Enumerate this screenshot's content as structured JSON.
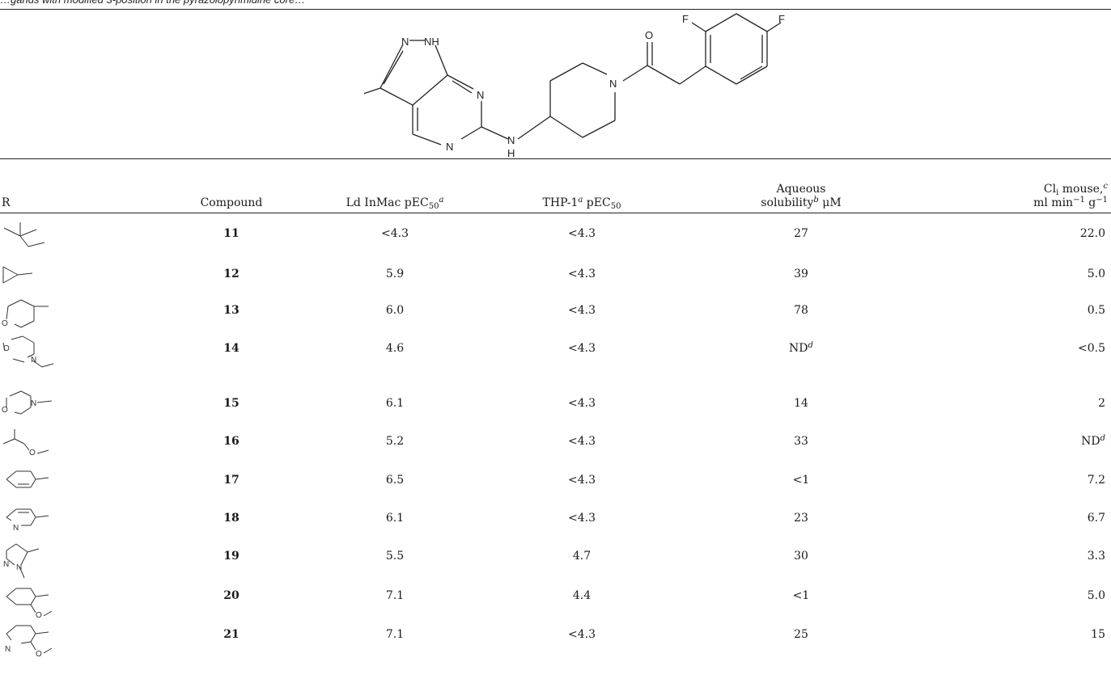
{
  "caption": "…gands with modified 3-position in the pyrazolopyrimidine core…",
  "scaffold": {
    "atoms": {
      "NH": "NH",
      "N": "N",
      "H": "H",
      "O": "O",
      "F": "F",
      "R": "R"
    }
  },
  "table": {
    "headers": {
      "r": "R",
      "compound": "Compound",
      "ld_prefix": "Ld InMac pEC",
      "ld_sub": "50",
      "ld_sup": "a",
      "thp_prefix": "THP-1",
      "thp_sup": "a",
      "thp_mid": " pEC",
      "thp_sub": "50",
      "sol_line1": "Aqueous",
      "sol_prefix": "solubility",
      "sol_sup": "b",
      "sol_unit": " μM",
      "cl_prefix": "Cl",
      "cl_sub": "i",
      "cl_mid": " mouse,",
      "cl_sup": "c",
      "cl_line2_a": "ml min",
      "cl_line2_sup1": "−1",
      "cl_line2_b": " g",
      "cl_line2_sup2": "−1"
    },
    "rows": [
      {
        "substituent": "neopentyl",
        "atom1": "",
        "atom2": "",
        "compound": "11",
        "ld": "<4.3",
        "thp": "<4.3",
        "sol": "27",
        "sol_sup": "",
        "cl": "22.0",
        "cl_sup": ""
      },
      {
        "substituent": "cyclopropyl",
        "atom1": "",
        "atom2": "",
        "compound": "12",
        "ld": "5.9",
        "thp": "<4.3",
        "sol": "39",
        "sol_sup": "",
        "cl": "5.0",
        "cl_sup": ""
      },
      {
        "substituent": "tetrahydropyranyl",
        "atom1": "O",
        "atom2": "",
        "compound": "13",
        "ld": "6.0",
        "thp": "<4.3",
        "sol": "78",
        "sol_sup": "",
        "cl": "0.5",
        "cl_sup": ""
      },
      {
        "substituent": "morpholinomethyl",
        "atom1": "O",
        "atom2": "N",
        "compound": "14",
        "ld": "4.6",
        "thp": "<4.3",
        "sol": "ND",
        "sol_sup": "d",
        "cl": "<0.5",
        "cl_sup": ""
      },
      {
        "substituent": "morpholino",
        "atom1": "O",
        "atom2": "N",
        "compound": "15",
        "ld": "6.1",
        "thp": "<4.3",
        "sol": "14",
        "sol_sup": "",
        "cl": "2",
        "cl_sup": ""
      },
      {
        "substituent": "isopropoxy",
        "atom1": "O",
        "atom2": "",
        "compound": "16",
        "ld": "5.2",
        "thp": "<4.3",
        "sol": "33",
        "sol_sup": "",
        "cl": "ND",
        "cl_sup": "d"
      },
      {
        "substituent": "phenyl",
        "atom1": "",
        "atom2": "",
        "compound": "17",
        "ld": "6.5",
        "thp": "<4.3",
        "sol": "<1",
        "sol_sup": "",
        "cl": "7.2",
        "cl_sup": ""
      },
      {
        "substituent": "2-pyridyl",
        "atom1": "N",
        "atom2": "",
        "compound": "18",
        "ld": "6.1",
        "thp": "<4.3",
        "sol": "23",
        "sol_sup": "",
        "cl": "6.7",
        "cl_sup": ""
      },
      {
        "substituent": "1-methylpyrazol-5-yl",
        "atom1": "N",
        "atom2": "N",
        "compound": "19",
        "ld": "5.5",
        "thp": "4.7",
        "sol": "30",
        "sol_sup": "",
        "cl": "3.3",
        "cl_sup": ""
      },
      {
        "substituent": "2-methoxyphenyl",
        "atom1": "O",
        "atom2": "",
        "compound": "20",
        "ld": "7.1",
        "thp": "4.4",
        "sol": "<1",
        "sol_sup": "",
        "cl": "5.0",
        "cl_sup": ""
      },
      {
        "substituent": "2-methoxypyridin-3-yl",
        "atom1": "N",
        "atom2": "O",
        "compound": "21",
        "ld": "7.1",
        "thp": "<4.3",
        "sol": "25",
        "sol_sup": "",
        "cl": "15",
        "cl_sup": ""
      }
    ]
  }
}
